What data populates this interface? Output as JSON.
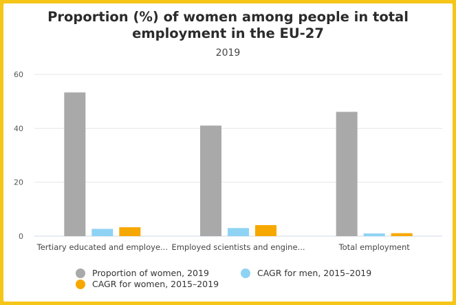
{
  "chart_data": {
    "type": "bar",
    "title": "Proportion (%) of women among people in total employment in the EU-27",
    "subtitle": "2019",
    "categories": [
      "Tertiary educated and employe...",
      "Employed scientists and engine...",
      "Total employment"
    ],
    "series": [
      {
        "name": "Proportion of women, 2019",
        "values": [
          53.3,
          41.0,
          46.1
        ],
        "color": "#a9a9a9"
      },
      {
        "name": "CAGR for men, 2015–2019",
        "values": [
          2.7,
          3.0,
          1.0
        ],
        "color": "#8fd3f4"
      },
      {
        "name": "CAGR for women, 2015–2019",
        "values": [
          3.3,
          4.1,
          1.1
        ],
        "color": "#f7a800"
      }
    ],
    "ylim": [
      0,
      60
    ],
    "yticks": [
      "0",
      "20",
      "40",
      "60"
    ],
    "grid": true,
    "legend_placement": "bottom"
  },
  "frame_color": "#f5c518"
}
